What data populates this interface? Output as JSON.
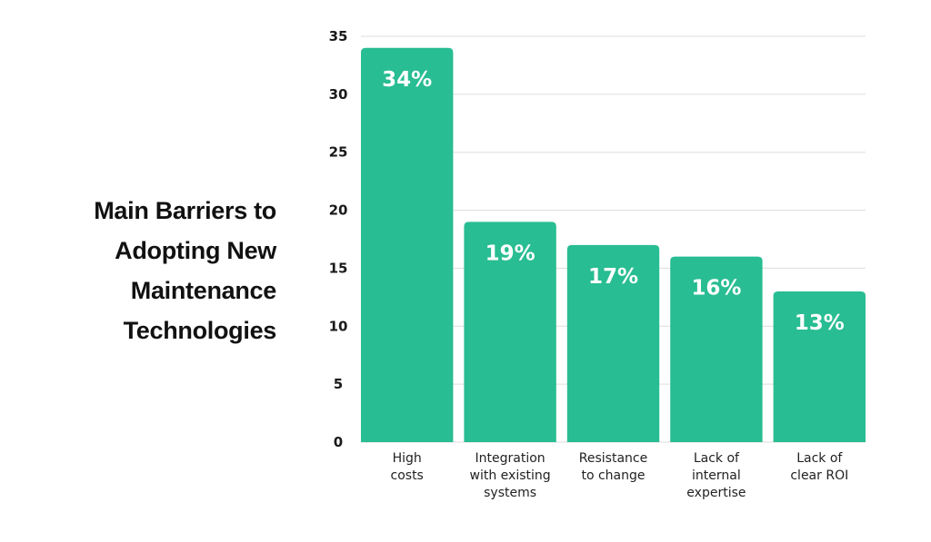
{
  "chart_data": {
    "type": "bar",
    "title_lines": [
      "Main Barriers to",
      "Adopting New",
      "Maintenance",
      "Technologies"
    ],
    "categories": [
      [
        "High",
        "costs"
      ],
      [
        "Integration",
        "with existing",
        "systems"
      ],
      [
        "Resistance",
        "to change"
      ],
      [
        "Lack of",
        "internal",
        "expertise"
      ],
      [
        "Lack of",
        "clear ROI"
      ]
    ],
    "values": [
      34,
      19,
      17,
      16,
      13
    ],
    "data_labels": [
      "34%",
      "19%",
      "17%",
      "16%",
      "13%"
    ],
    "yticks": [
      "0",
      "5",
      "10",
      "15",
      "20",
      "25",
      "30",
      "35"
    ],
    "ylim": [
      0,
      35
    ],
    "xlabel": "",
    "ylabel": "",
    "grid": true,
    "legend": "none",
    "colors": {
      "bar": "#28bd92",
      "grid": "#dddddd",
      "label": "#ffffff"
    }
  }
}
